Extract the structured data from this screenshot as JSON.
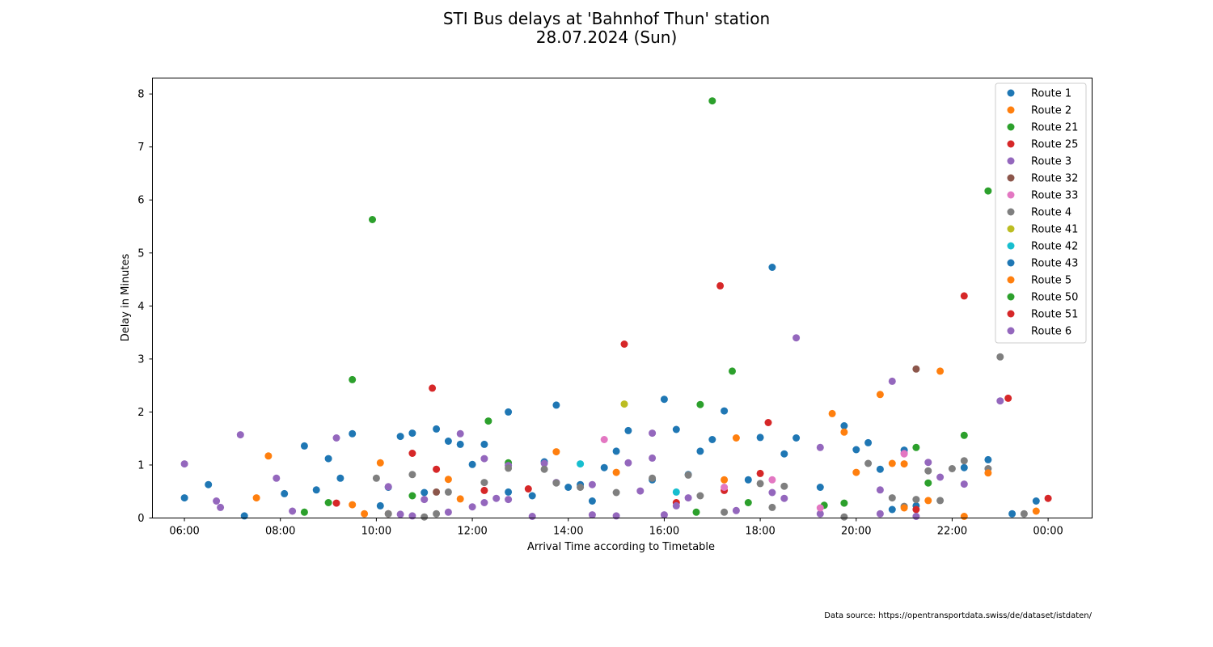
{
  "chart_data": {
    "type": "scatter",
    "title": "STI Bus delays at 'Bahnhof Thun' station",
    "subtitle": "28.07.2024 (Sun)",
    "xlabel": "Arrival Time according to Timetable",
    "ylabel": "Delay in Minutes",
    "source_note": "Data source: https://opentransportdata.swiss/de/dataset/istdaten/",
    "x_ticks": [
      "06:00",
      "08:00",
      "10:00",
      "12:00",
      "14:00",
      "16:00",
      "18:00",
      "20:00",
      "22:00",
      "00:00"
    ],
    "y_ticks": [
      "0",
      "1",
      "2",
      "3",
      "4",
      "5",
      "6",
      "7",
      "8"
    ],
    "xlim": [
      "05:20",
      "00:55"
    ],
    "ylim": [
      0,
      8.3
    ],
    "grid": false,
    "legend_position": "top-right",
    "series": [
      {
        "name": "Route 1",
        "color": "#1f77b4",
        "points": [
          [
            "06:00",
            0.38
          ],
          [
            "06:30",
            0.63
          ],
          [
            "07:15",
            0.04
          ],
          [
            "08:05",
            0.46
          ],
          [
            "08:30",
            1.36
          ],
          [
            "08:45",
            0.53
          ],
          [
            "09:00",
            1.12
          ],
          [
            "09:15",
            0.75
          ],
          [
            "09:30",
            1.59
          ],
          [
            "10:05",
            0.23
          ],
          [
            "10:15",
            0.58
          ],
          [
            "10:30",
            1.54
          ],
          [
            "10:45",
            1.6
          ],
          [
            "11:00",
            0.48
          ],
          [
            "11:15",
            1.68
          ],
          [
            "11:30",
            1.45
          ],
          [
            "11:45",
            1.39
          ],
          [
            "12:00",
            1.01
          ],
          [
            "12:15",
            1.39
          ],
          [
            "12:45",
            0.49
          ],
          [
            "12:45",
            2.0
          ],
          [
            "13:15",
            0.42
          ],
          [
            "13:30",
            1.06
          ],
          [
            "13:45",
            2.13
          ],
          [
            "14:00",
            0.58
          ],
          [
            "14:15",
            0.63
          ],
          [
            "14:30",
            0.32
          ],
          [
            "14:45",
            0.95
          ],
          [
            "15:00",
            1.26
          ],
          [
            "15:15",
            1.65
          ],
          [
            "15:45",
            0.72
          ],
          [
            "16:00",
            2.24
          ],
          [
            "16:15",
            1.67
          ],
          [
            "16:30",
            0.82
          ],
          [
            "16:45",
            1.26
          ],
          [
            "17:00",
            1.48
          ],
          [
            "17:15",
            2.02
          ],
          [
            "17:45",
            0.72
          ],
          [
            "18:00",
            1.52
          ],
          [
            "18:15",
            4.73
          ],
          [
            "18:30",
            1.21
          ],
          [
            "18:45",
            1.51
          ],
          [
            "19:15",
            0.58
          ],
          [
            "19:45",
            1.74
          ],
          [
            "20:00",
            1.29
          ],
          [
            "20:15",
            1.42
          ],
          [
            "20:30",
            0.92
          ],
          [
            "20:45",
            0.16
          ],
          [
            "21:00",
            1.28
          ],
          [
            "21:15",
            0.23
          ],
          [
            "22:15",
            0.95
          ],
          [
            "22:45",
            1.1
          ],
          [
            "23:15",
            0.08
          ],
          [
            "23:45",
            0.32
          ]
        ]
      },
      {
        "name": "Route 2",
        "color": "#ff7f0e",
        "points": []
      },
      {
        "name": "Route 21",
        "color": "#2ca02c",
        "points": [
          [
            "08:30",
            0.11
          ],
          [
            "09:00",
            0.29
          ],
          [
            "09:30",
            2.61
          ],
          [
            "09:55",
            5.63
          ],
          [
            "10:45",
            0.42
          ],
          [
            "12:20",
            1.83
          ],
          [
            "12:45",
            1.04
          ],
          [
            "16:40",
            0.11
          ],
          [
            "16:45",
            2.14
          ],
          [
            "17:00",
            7.87
          ],
          [
            "17:25",
            2.77
          ],
          [
            "17:45",
            0.29
          ],
          [
            "19:20",
            0.24
          ],
          [
            "19:45",
            0.28
          ],
          [
            "21:15",
            1.33
          ],
          [
            "21:30",
            0.66
          ],
          [
            "22:15",
            1.56
          ],
          [
            "22:45",
            6.17
          ]
        ]
      },
      {
        "name": "Route 25",
        "color": "#d62728",
        "points": [
          [
            "09:10",
            0.28
          ],
          [
            "10:45",
            1.22
          ],
          [
            "11:10",
            2.45
          ],
          [
            "11:15",
            0.92
          ],
          [
            "12:15",
            0.52
          ],
          [
            "13:10",
            0.55
          ],
          [
            "15:10",
            3.28
          ],
          [
            "16:15",
            0.29
          ],
          [
            "17:10",
            4.38
          ],
          [
            "17:15",
            0.52
          ],
          [
            "18:00",
            0.84
          ],
          [
            "18:10",
            1.8
          ],
          [
            "21:15",
            0.16
          ],
          [
            "22:15",
            4.19
          ],
          [
            "23:10",
            2.26
          ],
          [
            "00:00",
            0.37
          ]
        ]
      },
      {
        "name": "Route 3",
        "color": "#9467bd",
        "points": [
          [
            "06:00",
            1.02
          ],
          [
            "06:40",
            0.32
          ],
          [
            "06:45",
            0.2
          ],
          [
            "07:10",
            1.57
          ],
          [
            "07:55",
            0.75
          ],
          [
            "08:15",
            0.13
          ],
          [
            "09:10",
            1.51
          ],
          [
            "10:15",
            0.59
          ],
          [
            "10:30",
            0.07
          ],
          [
            "10:45",
            0.04
          ],
          [
            "11:00",
            0.35
          ],
          [
            "11:30",
            0.11
          ],
          [
            "11:45",
            1.59
          ],
          [
            "12:00",
            0.21
          ],
          [
            "12:15",
            0.29
          ],
          [
            "12:15",
            1.12
          ],
          [
            "12:30",
            0.37
          ],
          [
            "12:45",
            0.35
          ],
          [
            "12:45",
            0.99
          ],
          [
            "13:15",
            0.03
          ],
          [
            "13:30",
            1.03
          ],
          [
            "13:45",
            0.67
          ],
          [
            "14:30",
            0.63
          ],
          [
            "14:30",
            0.06
          ],
          [
            "15:00",
            0.04
          ],
          [
            "15:15",
            1.04
          ],
          [
            "15:30",
            0.51
          ],
          [
            "15:45",
            1.13
          ],
          [
            "15:45",
            1.6
          ],
          [
            "16:00",
            0.06
          ],
          [
            "16:15",
            0.23
          ],
          [
            "16:30",
            0.38
          ],
          [
            "17:30",
            0.14
          ],
          [
            "18:15",
            0.48
          ],
          [
            "18:30",
            0.37
          ],
          [
            "18:45",
            3.4
          ],
          [
            "19:15",
            1.33
          ],
          [
            "19:15",
            0.08
          ],
          [
            "20:30",
            0.08
          ],
          [
            "20:30",
            0.53
          ],
          [
            "20:45",
            2.58
          ],
          [
            "21:00",
            1.22
          ],
          [
            "21:15",
            0.03
          ],
          [
            "21:30",
            1.05
          ],
          [
            "21:45",
            0.77
          ],
          [
            "22:15",
            0.64
          ],
          [
            "23:00",
            2.21
          ]
        ]
      },
      {
        "name": "Route 32",
        "color": "#8c564b",
        "points": [
          [
            "10:15",
            0.08
          ],
          [
            "11:15",
            0.49
          ],
          [
            "21:15",
            2.81
          ]
        ]
      },
      {
        "name": "Route 33",
        "color": "#e377c2",
        "points": [
          [
            "14:45",
            1.48
          ],
          [
            "17:15",
            0.58
          ],
          [
            "18:15",
            0.72
          ],
          [
            "19:15",
            0.19
          ],
          [
            "21:00",
            1.21
          ]
        ]
      },
      {
        "name": "Route 4",
        "color": "#7f7f7f",
        "points": [
          [
            "10:00",
            0.75
          ],
          [
            "10:15",
            0.08
          ],
          [
            "10:45",
            0.82
          ],
          [
            "11:00",
            0.02
          ],
          [
            "11:15",
            0.08
          ],
          [
            "11:30",
            0.49
          ],
          [
            "12:15",
            0.67
          ],
          [
            "12:45",
            0.94
          ],
          [
            "13:30",
            0.92
          ],
          [
            "13:45",
            0.66
          ],
          [
            "14:15",
            0.58
          ],
          [
            "15:00",
            0.48
          ],
          [
            "15:45",
            0.75
          ],
          [
            "16:30",
            0.81
          ],
          [
            "16:45",
            0.42
          ],
          [
            "17:15",
            0.11
          ],
          [
            "18:00",
            0.65
          ],
          [
            "18:15",
            0.2
          ],
          [
            "18:30",
            0.6
          ],
          [
            "19:45",
            0.02
          ],
          [
            "20:15",
            1.03
          ],
          [
            "20:45",
            0.38
          ],
          [
            "21:00",
            0.22
          ],
          [
            "21:15",
            0.35
          ],
          [
            "21:30",
            0.89
          ],
          [
            "21:45",
            0.33
          ],
          [
            "22:00",
            0.93
          ],
          [
            "22:15",
            1.08
          ],
          [
            "22:45",
            0.93
          ],
          [
            "23:00",
            3.04
          ],
          [
            "23:30",
            0.08
          ]
        ]
      },
      {
        "name": "Route 41",
        "color": "#bcbd22",
        "points": [
          [
            "15:10",
            2.15
          ]
        ]
      },
      {
        "name": "Route 42",
        "color": "#17becf",
        "points": [
          [
            "14:15",
            1.02
          ],
          [
            "16:15",
            0.49
          ]
        ]
      },
      {
        "name": "Route 43",
        "color": "#1f77b4",
        "points": []
      },
      {
        "name": "Route 5",
        "color": "#ff7f0e",
        "points": [
          [
            "07:30",
            0.38
          ],
          [
            "07:45",
            1.17
          ],
          [
            "09:30",
            0.25
          ],
          [
            "09:45",
            0.08
          ],
          [
            "10:05",
            1.04
          ],
          [
            "11:30",
            0.73
          ],
          [
            "11:45",
            0.36
          ],
          [
            "13:45",
            1.25
          ],
          [
            "15:00",
            0.86
          ],
          [
            "17:15",
            0.72
          ],
          [
            "17:30",
            1.51
          ],
          [
            "19:30",
            1.97
          ],
          [
            "19:45",
            1.62
          ],
          [
            "20:00",
            0.86
          ],
          [
            "20:30",
            2.33
          ],
          [
            "20:45",
            1.03
          ],
          [
            "21:00",
            1.02
          ],
          [
            "21:00",
            0.19
          ],
          [
            "21:30",
            0.33
          ],
          [
            "21:45",
            2.77
          ],
          [
            "22:15",
            0.03
          ],
          [
            "22:45",
            0.85
          ],
          [
            "23:45",
            0.13
          ]
        ]
      },
      {
        "name": "Route 50",
        "color": "#2ca02c",
        "points": []
      },
      {
        "name": "Route 51",
        "color": "#d62728",
        "points": []
      },
      {
        "name": "Route 6",
        "color": "#9467bd",
        "points": []
      }
    ]
  }
}
